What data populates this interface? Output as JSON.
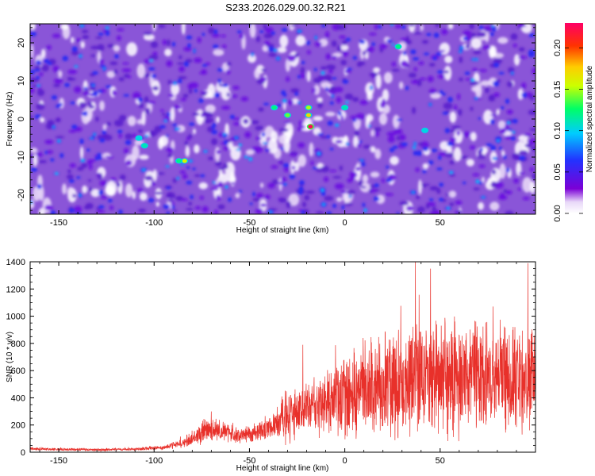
{
  "colors": {
    "trace": "#e8302a",
    "colormap": [
      "#ffffff",
      "#7b00d6",
      "#2233ff",
      "#00ccff",
      "#00ff66",
      "#ccff00",
      "#ffcc00",
      "#ff3300",
      "#ff0066"
    ]
  },
  "chart_data": [
    {
      "type": "heatmap",
      "title": "S233.2026.029.00.32.R21",
      "xlabel": "Height of straight line (km)",
      "ylabel": "Frequency (Hz)",
      "xlim": [
        -165,
        100
      ],
      "ylim": [
        -25,
        25
      ],
      "xticks": [
        -150,
        -100,
        -50,
        0,
        50
      ],
      "yticks": [
        -20,
        -10,
        0,
        10,
        20
      ],
      "colorbar": {
        "label": "Normalized spectral amplitude",
        "range": [
          0,
          0.23
        ],
        "ticks": [
          0.0,
          0.05,
          0.1,
          0.15,
          0.2
        ],
        "tick_labels": [
          "0.00",
          "0.05",
          "0.10",
          "0.15",
          "0.20"
        ]
      },
      "peaks": [
        {
          "x": -18,
          "y": -2,
          "value": 0.22
        },
        {
          "x": -19,
          "y": 1,
          "value": 0.17
        },
        {
          "x": -19,
          "y": 3,
          "value": 0.15
        },
        {
          "x": -30,
          "y": 1,
          "value": 0.14
        },
        {
          "x": -37,
          "y": 3,
          "value": 0.12
        },
        {
          "x": -84,
          "y": -11,
          "value": 0.16
        },
        {
          "x": -87,
          "y": -11,
          "value": 0.12
        },
        {
          "x": -105,
          "y": -7,
          "value": 0.11
        },
        {
          "x": -108,
          "y": -5,
          "value": 0.1
        },
        {
          "x": 0,
          "y": 3,
          "value": 0.11
        },
        {
          "x": 28,
          "y": 19,
          "value": 0.12
        },
        {
          "x": 42,
          "y": -3,
          "value": 0.1
        }
      ]
    },
    {
      "type": "line",
      "xlabel": "Height of straight line (km)",
      "ylabel": "SNR (10 * v/v)",
      "xlim": [
        -165,
        100
      ],
      "ylim": [
        0,
        1400
      ],
      "xticks": [
        -150,
        -100,
        -50,
        0,
        50
      ],
      "yticks": [
        0,
        200,
        400,
        600,
        800,
        1000,
        1200,
        1400
      ],
      "series": [
        {
          "name": "SNR",
          "x": [
            -165,
            -150,
            -130,
            -110,
            -95,
            -85,
            -78,
            -72,
            -65,
            -60,
            -55,
            -50,
            -45,
            -40,
            -35,
            -32,
            -30,
            -28,
            -25,
            -22,
            -20,
            -15,
            -10,
            -5,
            0,
            5,
            10,
            15,
            20,
            25,
            30,
            35,
            40,
            45,
            50,
            55,
            60,
            65,
            70,
            75,
            80,
            85,
            90,
            95,
            100
          ],
          "mean": [
            25,
            20,
            18,
            22,
            35,
            60,
            120,
            170,
            150,
            140,
            120,
            135,
            150,
            175,
            215,
            240,
            260,
            280,
            300,
            320,
            330,
            340,
            355,
            370,
            410,
            440,
            460,
            480,
            500,
            520,
            530,
            540,
            545,
            550,
            550,
            550,
            550,
            550,
            550,
            550,
            545,
            545,
            545,
            550,
            550
          ],
          "spread": [
            10,
            10,
            10,
            10,
            15,
            30,
            60,
            90,
            70,
            60,
            50,
            55,
            65,
            80,
            120,
            170,
            220,
            200,
            180,
            170,
            170,
            180,
            200,
            220,
            280,
            300,
            320,
            330,
            350,
            360,
            370,
            380,
            380,
            380,
            380,
            380,
            380,
            380,
            380,
            380,
            370,
            370,
            370,
            370,
            370
          ],
          "peak_values": [
            {
              "x": 37,
              "y": 1400
            },
            {
              "x": 45,
              "y": 1350
            },
            {
              "x": 96,
              "y": 1390
            },
            {
              "x": -22,
              "y": 790
            },
            {
              "x": -70,
              "y": 300
            }
          ]
        }
      ]
    }
  ]
}
